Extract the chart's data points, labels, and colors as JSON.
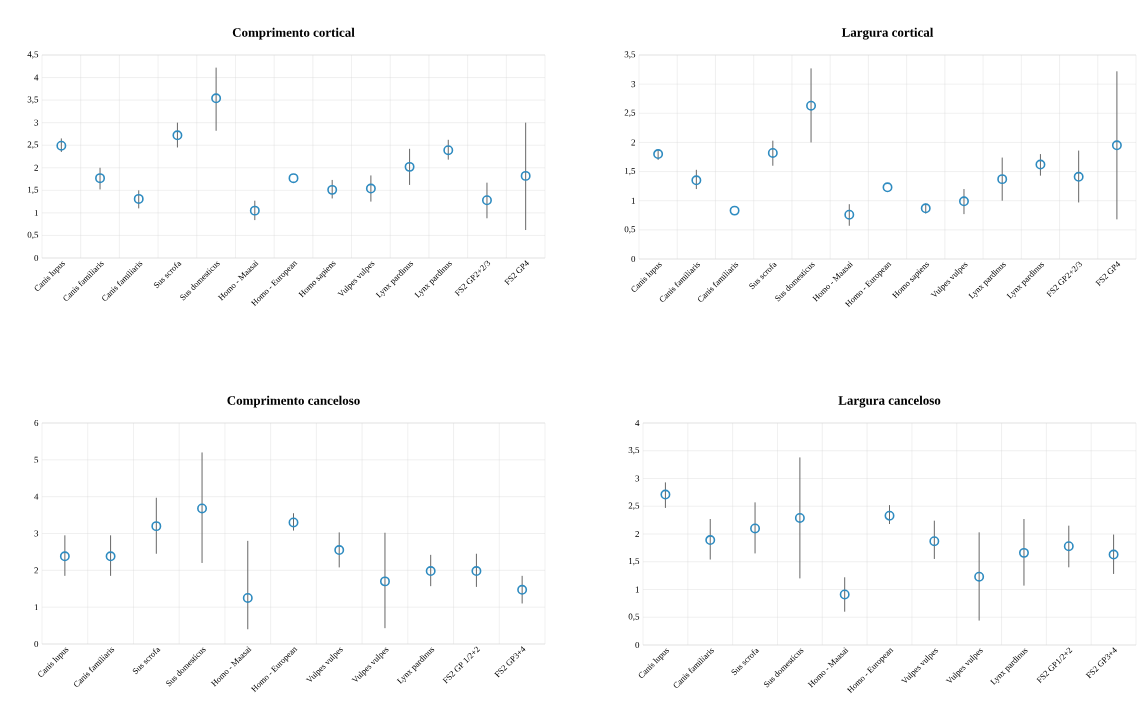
{
  "chart_data": [
    {
      "type": "scatter",
      "title": "Comprimento  cortical",
      "marker": "circle",
      "grid": true,
      "categories": [
        "Canis lupus",
        "Canis familiaris",
        "Canis familiaris",
        "Sus scrofa",
        "Sus domesticus",
        "Homo - Maasai",
        "Homo - European",
        "Homo sapiens",
        "Vulpes vulpes",
        "Lynx pardinus",
        "Lynx pardinus",
        "FS2 GP2+2/3",
        "FS2 GP4"
      ],
      "series": [
        {
          "color": "#2e8bc0",
          "values": [
            2.49,
            1.77,
            1.31,
            2.72,
            3.54,
            1.05,
            1.77,
            1.51,
            1.54,
            2.02,
            2.39,
            1.28,
            1.82
          ],
          "errors": [
            [
              2.35,
              2.65
            ],
            [
              1.52,
              2.0
            ],
            [
              1.1,
              1.5
            ],
            [
              2.45,
              3.0
            ],
            [
              2.82,
              4.22
            ],
            [
              0.84,
              1.27
            ],
            null,
            [
              1.32,
              1.73
            ],
            [
              1.25,
              1.83
            ],
            [
              1.62,
              2.42
            ],
            [
              2.18,
              2.62
            ],
            [
              0.88,
              1.67
            ],
            [
              0.62,
              3.0
            ]
          ]
        }
      ],
      "ylim": [
        0,
        4.5
      ],
      "yticks": [
        0,
        {
          "value": 0.5,
          "label": "0,5"
        },
        1,
        {
          "value": 1.5,
          "label": "1,5"
        },
        2,
        {
          "value": 2.5,
          "label": "2,5"
        },
        3,
        {
          "value": 3.5,
          "label": "3,5"
        },
        4,
        {
          "value": 4.5,
          "label": "4,5"
        }
      ]
    },
    {
      "type": "scatter",
      "title": "Largura  cortical",
      "marker": "circle",
      "grid": true,
      "categories": [
        "Canis lupus",
        "Canis familiaris",
        "Canis familiaris",
        "Sus scrofa",
        "Sus domesticus",
        "Homo - Maasai",
        "Homo - European",
        "Homo sapiens",
        "Vulpes vulpes",
        "Lynx pardinus",
        "Lynx pardinus",
        "FS2 GP2+2/3",
        "FS2 GP4"
      ],
      "series": [
        {
          "color": "#2e8bc0",
          "values": [
            1.8,
            1.35,
            0.83,
            1.82,
            2.63,
            0.76,
            1.23,
            0.87,
            0.99,
            1.37,
            1.62,
            1.41,
            1.95
          ],
          "errors": [
            [
              1.7,
              1.88
            ],
            [
              1.2,
              1.53
            ],
            null,
            [
              1.6,
              2.03
            ],
            [
              2.0,
              3.27
            ],
            [
              0.57,
              0.94
            ],
            null,
            [
              0.78,
              0.95
            ],
            [
              0.77,
              1.2
            ],
            [
              1.0,
              1.74
            ],
            [
              1.43,
              1.8
            ],
            [
              0.97,
              1.86
            ],
            [
              0.68,
              3.22
            ]
          ]
        }
      ],
      "ylim": [
        0,
        3.5
      ],
      "yticks": [
        0,
        {
          "value": 0.5,
          "label": "0,5"
        },
        1,
        {
          "value": 1.5,
          "label": "1,5"
        },
        2,
        {
          "value": 2.5,
          "label": "2,5"
        },
        3,
        {
          "value": 3.5,
          "label": "3,5"
        }
      ]
    },
    {
      "type": "scatter",
      "title": "Comprimento  canceloso",
      "marker": "circle",
      "grid": true,
      "categories": [
        "Canis lupus",
        "Canis familiaris",
        "Sus scrofa",
        "Sus domesticus",
        "Homo - Maasai",
        "Homo - European",
        "Vulpes vulpes",
        "Vulpes vulpes",
        "Lynx pardinus",
        "FS2 GP 1/2+2",
        "FS2 GP3+4"
      ],
      "series": [
        {
          "color": "#2e8bc0",
          "values": [
            2.38,
            2.38,
            3.2,
            3.68,
            1.25,
            3.3,
            2.55,
            1.7,
            1.98,
            1.98,
            1.47
          ],
          "errors": [
            [
              1.85,
              2.95
            ],
            [
              1.85,
              2.95
            ],
            [
              2.45,
              3.97
            ],
            [
              2.2,
              5.2
            ],
            [
              0.4,
              2.8
            ],
            [
              3.08,
              3.55
            ],
            [
              2.08,
              3.03
            ],
            [
              0.43,
              3.02
            ],
            [
              1.57,
              2.42
            ],
            [
              1.55,
              2.45
            ],
            [
              1.1,
              1.85
            ]
          ]
        }
      ],
      "ylim": [
        0,
        6
      ],
      "yticks": [
        0,
        1,
        2,
        3,
        4,
        5,
        6
      ]
    },
    {
      "type": "scatter",
      "title": "Largura  canceloso",
      "marker": "circle",
      "grid": true,
      "categories": [
        "Canis lupus",
        "Canis familiaris",
        "Sus scrofa",
        "Sus domesticus",
        "Homo - Maasai",
        "Homo - European",
        "Vulpes vulpes",
        "Vulpes vulpes",
        "Lynx pardinus",
        "FS2 GP1/2+2",
        "FS2 GP3+4"
      ],
      "series": [
        {
          "color": "#2e8bc0",
          "values": [
            2.71,
            1.89,
            2.1,
            2.29,
            0.91,
            2.33,
            1.87,
            1.23,
            1.66,
            1.78,
            1.63
          ],
          "errors": [
            [
              2.47,
              2.93
            ],
            [
              1.54,
              2.27
            ],
            [
              1.65,
              2.57
            ],
            [
              1.2,
              3.38
            ],
            [
              0.6,
              1.22
            ],
            [
              2.18,
              2.52
            ],
            [
              1.55,
              2.24
            ],
            [
              0.44,
              2.03
            ],
            [
              1.07,
              2.27
            ],
            [
              1.4,
              2.15
            ],
            [
              1.28,
              1.99
            ]
          ]
        }
      ],
      "ylim": [
        0,
        4
      ],
      "yticks": [
        0,
        {
          "value": 0.5,
          "label": "0,5"
        },
        1,
        {
          "value": 1.5,
          "label": "1,5"
        },
        2,
        {
          "value": 2.5,
          "label": "2,5"
        },
        3,
        {
          "value": 3.5,
          "label": "3,5"
        },
        4
      ]
    }
  ]
}
